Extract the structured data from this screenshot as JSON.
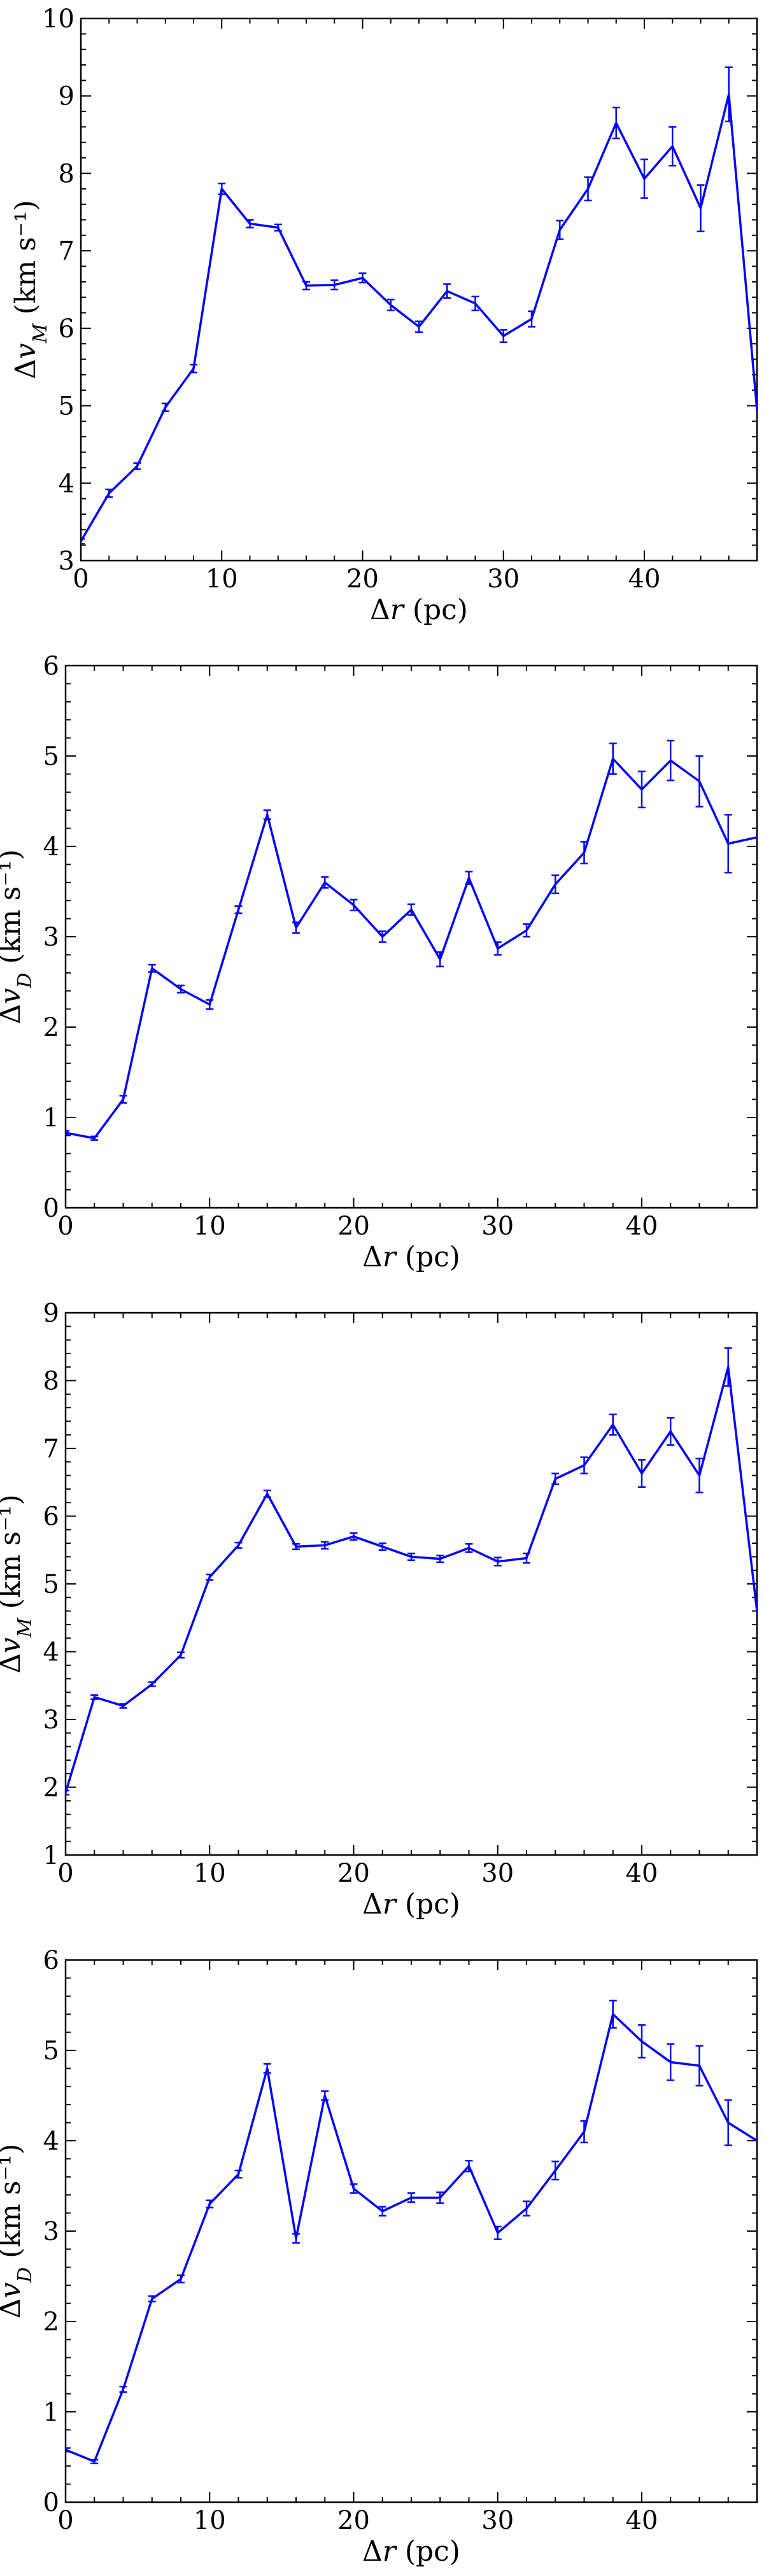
{
  "chart_data": [
    {
      "type": "line",
      "xlabel": "Δr (pc)",
      "ylabel": "Δv_M (km s⁻¹)",
      "xlim": [
        0,
        48
      ],
      "ylim": [
        3,
        10
      ],
      "xticks": [
        0,
        10,
        20,
        30,
        40
      ],
      "yticks": [
        3,
        4,
        5,
        6,
        7,
        8,
        9,
        10
      ],
      "grid": false,
      "color": "#0000ff",
      "x": [
        0,
        2,
        4,
        6,
        8,
        10,
        12,
        14,
        16,
        18,
        20,
        22,
        24,
        26,
        28,
        30,
        32,
        34,
        36,
        38,
        40,
        42,
        44,
        46,
        48
      ],
      "y": [
        3.25,
        3.87,
        4.22,
        4.98,
        5.48,
        7.8,
        7.35,
        7.3,
        6.55,
        6.56,
        6.65,
        6.3,
        6.02,
        6.48,
        6.32,
        5.9,
        6.12,
        7.27,
        7.8,
        8.65,
        7.93,
        8.35,
        7.55,
        9.02,
        4.95
      ],
      "err": [
        0.03,
        0.05,
        0.04,
        0.05,
        0.05,
        0.07,
        0.05,
        0.04,
        0.05,
        0.06,
        0.06,
        0.07,
        0.07,
        0.09,
        0.09,
        0.08,
        0.1,
        0.12,
        0.15,
        0.2,
        0.25,
        0.25,
        0.3,
        0.35,
        0.0
      ]
    },
    {
      "type": "line",
      "xlabel": "Δr (pc)",
      "ylabel": "Δv_D (km s⁻¹)",
      "xlim": [
        0,
        48
      ],
      "ylim": [
        0,
        6
      ],
      "xticks": [
        0,
        10,
        20,
        30,
        40
      ],
      "yticks": [
        0,
        1,
        2,
        3,
        4,
        5,
        6
      ],
      "grid": false,
      "color": "#0000ff",
      "x": [
        0,
        2,
        4,
        6,
        8,
        10,
        12,
        14,
        16,
        18,
        20,
        22,
        24,
        26,
        28,
        30,
        32,
        34,
        36,
        38,
        40,
        42,
        44,
        46,
        48
      ],
      "y": [
        0.83,
        0.77,
        1.2,
        2.65,
        2.42,
        2.25,
        3.3,
        4.35,
        3.1,
        3.6,
        3.35,
        3.0,
        3.3,
        2.75,
        3.65,
        2.87,
        3.07,
        3.58,
        3.93,
        4.97,
        4.63,
        4.95,
        4.72,
        4.03,
        4.1
      ],
      "err": [
        0.02,
        0.02,
        0.04,
        0.04,
        0.04,
        0.05,
        0.04,
        0.05,
        0.06,
        0.06,
        0.06,
        0.06,
        0.06,
        0.08,
        0.07,
        0.07,
        0.07,
        0.1,
        0.12,
        0.17,
        0.2,
        0.22,
        0.28,
        0.32,
        0.0
      ]
    },
    {
      "type": "line",
      "xlabel": "Δr (pc)",
      "ylabel": "Δv_M (km s⁻¹)",
      "xlim": [
        0,
        48
      ],
      "ylim": [
        1,
        9
      ],
      "xticks": [
        0,
        10,
        20,
        30,
        40
      ],
      "yticks": [
        1,
        2,
        3,
        4,
        5,
        6,
        7,
        8,
        9
      ],
      "grid": false,
      "color": "#0000ff",
      "x": [
        0,
        2,
        4,
        6,
        8,
        10,
        12,
        14,
        16,
        18,
        20,
        22,
        24,
        26,
        28,
        30,
        32,
        34,
        36,
        38,
        40,
        42,
        44,
        46,
        48
      ],
      "y": [
        1.92,
        3.33,
        3.2,
        3.52,
        3.95,
        5.1,
        5.57,
        6.33,
        5.55,
        5.57,
        5.7,
        5.55,
        5.4,
        5.37,
        5.53,
        5.33,
        5.38,
        6.55,
        6.75,
        7.35,
        6.63,
        7.25,
        6.6,
        8.2,
        4.6
      ],
      "err": [
        0.03,
        0.03,
        0.03,
        0.03,
        0.04,
        0.04,
        0.04,
        0.05,
        0.04,
        0.05,
        0.05,
        0.05,
        0.05,
        0.05,
        0.06,
        0.06,
        0.07,
        0.08,
        0.12,
        0.15,
        0.2,
        0.2,
        0.25,
        0.28,
        0.0
      ]
    },
    {
      "type": "line",
      "xlabel": "Δr (pc)",
      "ylabel": "Δv_D (km s⁻¹)",
      "xlim": [
        0,
        48
      ],
      "ylim": [
        0,
        6
      ],
      "xticks": [
        0,
        10,
        20,
        30,
        40
      ],
      "yticks": [
        0,
        1,
        2,
        3,
        4,
        5,
        6
      ],
      "grid": false,
      "color": "#0000ff",
      "x": [
        0,
        2,
        4,
        6,
        8,
        10,
        12,
        14,
        16,
        18,
        20,
        22,
        24,
        26,
        28,
        30,
        32,
        34,
        36,
        38,
        40,
        42,
        44,
        46,
        48
      ],
      "y": [
        0.58,
        0.45,
        1.25,
        2.25,
        2.47,
        3.3,
        3.63,
        4.8,
        2.92,
        4.5,
        3.47,
        3.22,
        3.37,
        3.37,
        3.72,
        2.98,
        3.25,
        3.67,
        4.1,
        5.4,
        5.1,
        4.87,
        4.83,
        4.2,
        4.0
      ],
      "err": [
        0.02,
        0.02,
        0.03,
        0.03,
        0.04,
        0.04,
        0.04,
        0.05,
        0.05,
        0.05,
        0.05,
        0.05,
        0.05,
        0.06,
        0.06,
        0.07,
        0.08,
        0.1,
        0.12,
        0.15,
        0.18,
        0.2,
        0.22,
        0.25,
        0.0
      ]
    }
  ]
}
